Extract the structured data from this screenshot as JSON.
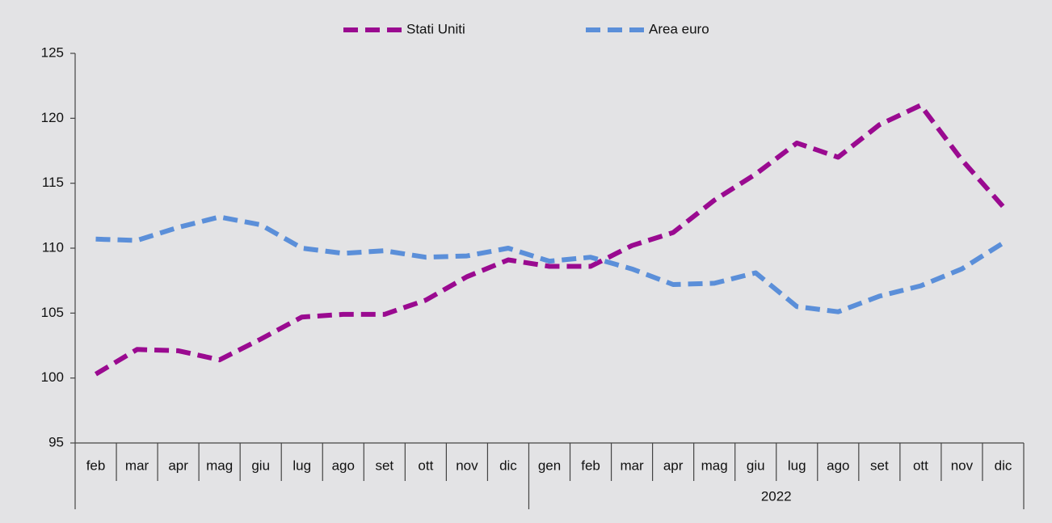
{
  "chart_data": {
    "type": "line",
    "category_groups": [
      {
        "categories": [
          "feb",
          "mar",
          "apr",
          "mag",
          "giu",
          "lug",
          "ago",
          "set",
          "ott",
          "nov",
          "dic"
        ]
      },
      {
        "label": "2022",
        "categories": [
          "gen",
          "feb",
          "mar",
          "apr",
          "mag",
          "giu",
          "lug",
          "ago",
          "set",
          "ott",
          "nov",
          "dic"
        ]
      }
    ],
    "series": [
      {
        "name": "Stati Uniti",
        "color": "#9a0a90",
        "values": [
          100.3,
          102.2,
          102.1,
          101.4,
          103.0,
          104.7,
          104.9,
          104.9,
          106.0,
          107.8,
          109.1,
          108.6,
          108.6,
          110.2,
          111.2,
          113.7,
          115.7,
          118.1,
          117.0,
          119.5,
          121.0,
          116.8,
          113.2
        ]
      },
      {
        "name": "Area euro",
        "color": "#5b8fd9",
        "values": [
          110.7,
          110.6,
          111.6,
          112.4,
          111.8,
          110.0,
          109.6,
          109.8,
          109.3,
          109.4,
          110.0,
          109.0,
          109.3,
          108.4,
          107.2,
          107.3,
          108.1,
          105.5,
          105.1,
          106.3,
          107.1,
          108.4,
          110.4
        ]
      }
    ],
    "ylim": [
      95,
      125
    ],
    "yticks": [
      95,
      100,
      105,
      110,
      115,
      120,
      125
    ],
    "legend": "top"
  }
}
